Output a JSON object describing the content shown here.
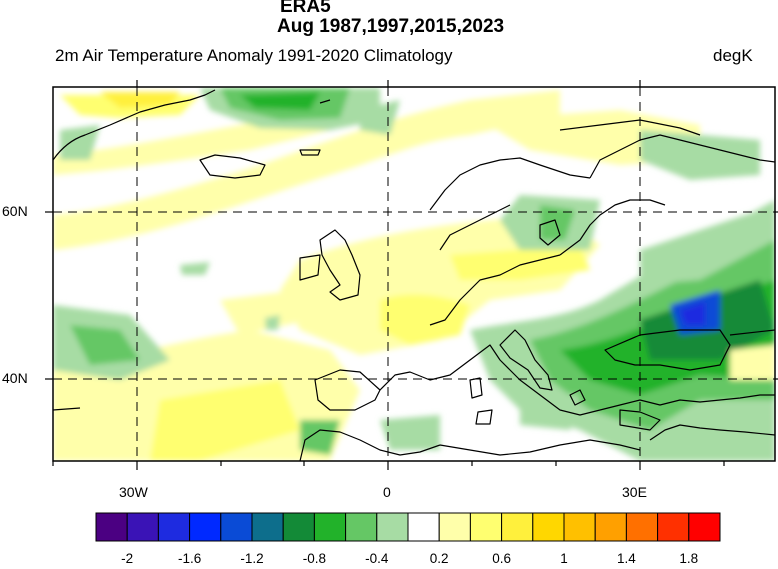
{
  "header": {
    "dataset": "ERA5",
    "period": "Aug 1987,1997,2015,2023",
    "variable": "2m Air Temperature Anomaly  1991-2020 Climatology",
    "units": "degK"
  },
  "axes": {
    "lon_labels": [
      "30W",
      "0",
      "30E"
    ],
    "lat_labels": [
      "60N",
      "40N"
    ],
    "lon_range_deg": [
      -40,
      46
    ],
    "lat_range_deg": [
      30,
      75
    ]
  },
  "colorbar": {
    "tick_labels": [
      "-2",
      "-1.6",
      "-1.2",
      "-0.8",
      "-0.4",
      "0.2",
      "0.6",
      "1",
      "1.4",
      "1.8"
    ],
    "colors": [
      "#4b0082",
      "#3a13b6",
      "#1e2be0",
      "#0029ff",
      "#0a4bd6",
      "#0d6e8c",
      "#138a37",
      "#22b22a",
      "#65c765",
      "#a7dca4",
      "#ffffff",
      "#ffffaa",
      "#ffff70",
      "#fff03c",
      "#ffd700",
      "#ffc000",
      "#ffa000",
      "#ff7000",
      "#ff3000",
      "#ff0000"
    ]
  },
  "map_icons": [
    "anomaly-field",
    "coastline",
    "graticule"
  ]
}
